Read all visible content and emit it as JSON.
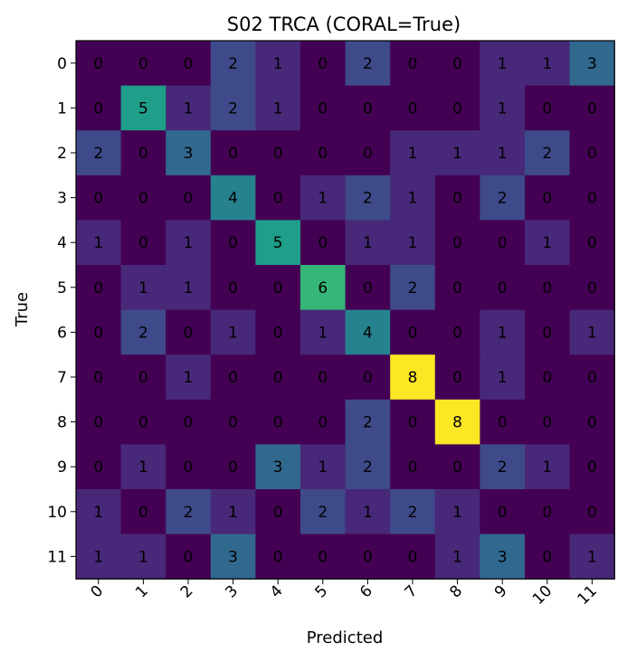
{
  "chart_data": {
    "type": "heatmap",
    "title": "S02 TRCA (CORAL=True)",
    "xlabel": "Predicted",
    "ylabel": "True",
    "x_categories": [
      "0",
      "1",
      "2",
      "3",
      "4",
      "5",
      "6",
      "7",
      "8",
      "9",
      "10",
      "11"
    ],
    "y_categories": [
      "0",
      "1",
      "2",
      "3",
      "4",
      "5",
      "6",
      "7",
      "8",
      "9",
      "10",
      "11"
    ],
    "value_range": [
      0,
      8
    ],
    "colormap": "viridis",
    "matrix": [
      [
        0,
        0,
        0,
        2,
        1,
        0,
        2,
        0,
        0,
        1,
        1,
        3
      ],
      [
        0,
        5,
        1,
        2,
        1,
        0,
        0,
        0,
        0,
        1,
        0,
        0
      ],
      [
        2,
        0,
        3,
        0,
        0,
        0,
        0,
        1,
        1,
        1,
        2,
        0
      ],
      [
        0,
        0,
        0,
        4,
        0,
        1,
        2,
        1,
        0,
        2,
        0,
        0
      ],
      [
        1,
        0,
        1,
        0,
        5,
        0,
        1,
        1,
        0,
        0,
        1,
        0
      ],
      [
        0,
        1,
        1,
        0,
        0,
        6,
        0,
        2,
        0,
        0,
        0,
        0
      ],
      [
        0,
        2,
        0,
        1,
        0,
        1,
        4,
        0,
        0,
        1,
        0,
        1
      ],
      [
        0,
        0,
        1,
        0,
        0,
        0,
        0,
        8,
        0,
        1,
        0,
        0
      ],
      [
        0,
        0,
        0,
        0,
        0,
        0,
        2,
        0,
        8,
        0,
        0,
        0
      ],
      [
        0,
        1,
        0,
        0,
        3,
        1,
        2,
        0,
        0,
        2,
        1,
        0
      ],
      [
        1,
        0,
        2,
        1,
        0,
        2,
        1,
        2,
        1,
        0,
        0,
        0
      ],
      [
        1,
        1,
        0,
        3,
        0,
        0,
        0,
        0,
        1,
        3,
        0,
        1
      ]
    ]
  }
}
